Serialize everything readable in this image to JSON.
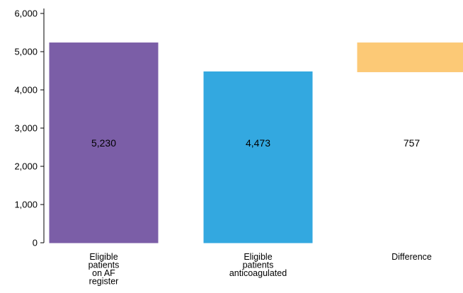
{
  "chart_data": {
    "type": "bar",
    "categories": [
      [
        "Eligible",
        "patients",
        "on AF",
        "register"
      ],
      [
        "Eligible",
        "patients",
        "anticoagulated"
      ],
      [
        "Difference"
      ]
    ],
    "bars": [
      {
        "start": 0,
        "end": 5230,
        "label": "5,230",
        "color": "#7b5ea7"
      },
      {
        "start": 0,
        "end": 4473,
        "label": "4,473",
        "color": "#33a8e0"
      },
      {
        "start": 4473,
        "end": 5230,
        "label": "757",
        "color": "#fcc976"
      }
    ],
    "values": [
      5230,
      4473,
      757
    ],
    "ylim": [
      0,
      6000
    ],
    "yticks": [
      0,
      1000,
      2000,
      3000,
      4000,
      5000,
      6000
    ],
    "ytick_labels": [
      "0",
      "1,000",
      "2,000",
      "3,000",
      "4,000",
      "5,000",
      "6,000"
    ],
    "grid": false,
    "xlabel": "",
    "ylabel": "",
    "title": ""
  }
}
